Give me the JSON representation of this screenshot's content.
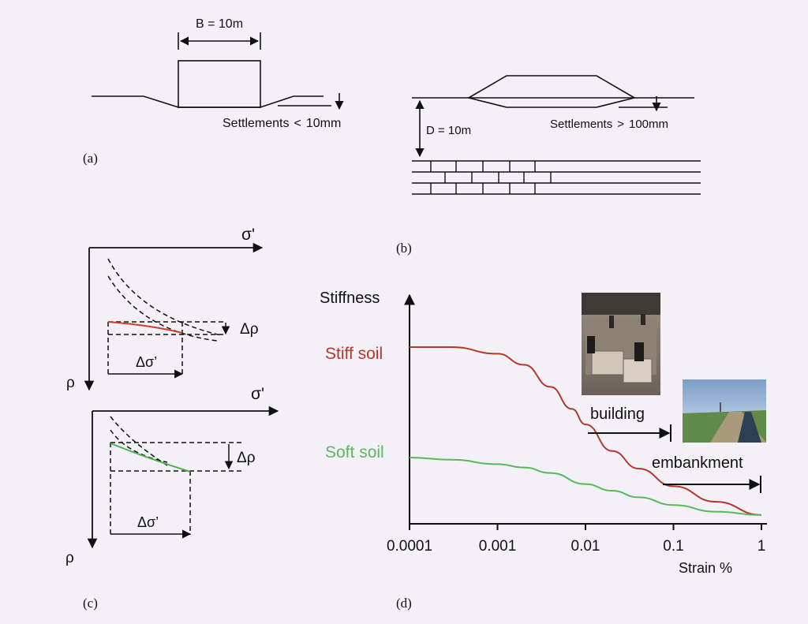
{
  "panel_a": {
    "label": "(a)",
    "width_label": "B = 10m",
    "settlement_label": "Settlements",
    "settlement_symbol": "<",
    "settlement_value": "10mm"
  },
  "panel_b": {
    "label": "(b)",
    "depth_label": "D = 10m",
    "settlement_label": "Settlements",
    "settlement_symbol": ">",
    "settlement_value": "100mm"
  },
  "panel_c": {
    "label": "(c)",
    "upper": {
      "x_axis": "σ'",
      "y_axis": "ρ",
      "d_rho": "Δρ",
      "d_sigma": "Δσ’",
      "curve_color": "#d23c2c"
    },
    "lower": {
      "x_axis": "σ'",
      "y_axis": "ρ",
      "d_rho": "Δρ",
      "d_sigma": "Δσ’",
      "curve_color": "#4caf50"
    }
  },
  "panel_d": {
    "label": "(d)",
    "chart_data": {
      "type": "line",
      "title": "",
      "ylabel": "Stiffness",
      "xlabel": "Strain %",
      "x_scale": "log",
      "xlim": [
        0.0001,
        1
      ],
      "x_ticks": [
        "0.0001",
        "0.001",
        "0.01",
        "0.1",
        "1"
      ],
      "y_ticks_shown": false,
      "series": [
        {
          "name": "Stiff soil",
          "color": "#b5362a",
          "x": [
            0.0001,
            0.0003,
            0.001,
            0.002,
            0.004,
            0.007,
            0.01,
            0.02,
            0.04,
            0.1,
            0.3,
            1
          ],
          "y": [
            0.8,
            0.8,
            0.77,
            0.72,
            0.62,
            0.52,
            0.45,
            0.33,
            0.25,
            0.17,
            0.1,
            0.04
          ]
        },
        {
          "name": "Soft soil",
          "color": "#5cb85c",
          "x": [
            0.0001,
            0.0003,
            0.001,
            0.002,
            0.004,
            0.01,
            0.02,
            0.04,
            0.1,
            0.3,
            1
          ],
          "y": [
            0.3,
            0.29,
            0.27,
            0.255,
            0.23,
            0.18,
            0.15,
            0.12,
            0.085,
            0.055,
            0.04
          ]
        }
      ],
      "annotations": [
        {
          "text": "building",
          "arrow_to": 0.1
        },
        {
          "text": "embankment",
          "arrow_to": 1
        }
      ]
    }
  }
}
